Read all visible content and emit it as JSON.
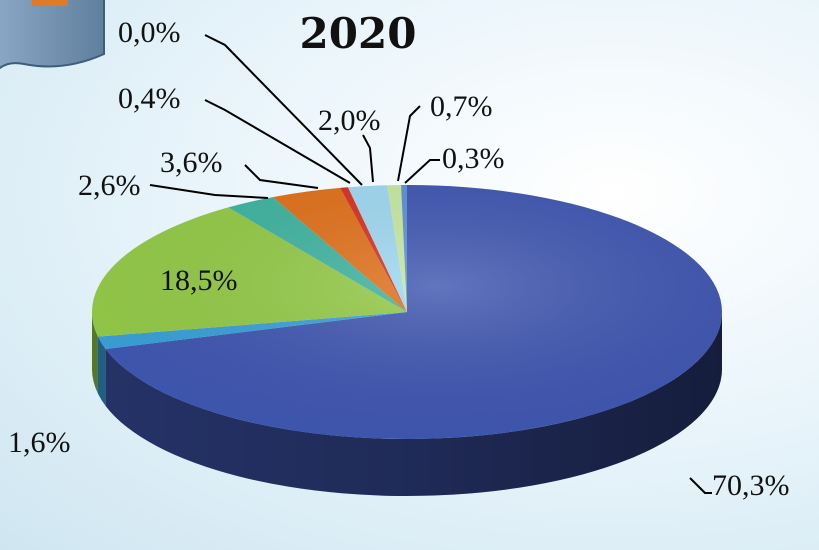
{
  "chart_data": {
    "type": "pie",
    "title": "2020",
    "labels": [
      "70,3%",
      "1,6%",
      "18,5%",
      "2,6%",
      "3,6%",
      "0,4%",
      "0,0%",
      "2,0%",
      "0,7%",
      "0,3%"
    ],
    "values": [
      70.3,
      1.6,
      18.5,
      2.6,
      3.6,
      0.4,
      0.0,
      2.0,
      0.7,
      0.3
    ],
    "colors": [
      "#3f56b0",
      "#3a9fd8",
      "#93c947",
      "#3fb3a0",
      "#e0701a",
      "#d8301f",
      "#c23b2c",
      "#9fd8f0",
      "#c6e8a0",
      "#5d8fd6"
    ],
    "decor_icon": "book-icon"
  }
}
